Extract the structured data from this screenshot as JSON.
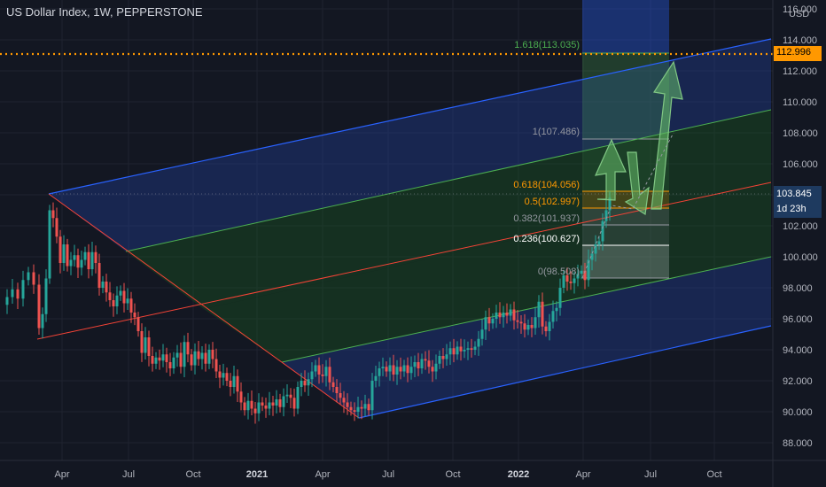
{
  "header": {
    "title": "US Dollar Index, 1W, PEPPERSTONE",
    "currency": "USD"
  },
  "price_axis": {
    "ticks": [
      "116.000",
      "114.000",
      "112.000",
      "110.000",
      "108.000",
      "106.000",
      "104.000",
      "102.000",
      "100.000",
      "98.000",
      "96.000",
      "94.000",
      "92.000",
      "90.000",
      "88.000"
    ],
    "alert_price": "112.996",
    "last_price": "103.845",
    "countdown": "1d 23h"
  },
  "time_axis": {
    "ticks": [
      "Apr",
      "Jul",
      "Oct",
      "2021",
      "Apr",
      "Jul",
      "Oct",
      "2022",
      "Apr",
      "Jul",
      "Oct"
    ],
    "bold": [
      false,
      false,
      false,
      true,
      false,
      false,
      false,
      true,
      false,
      false,
      false
    ]
  },
  "fib_levels": [
    {
      "label": "1.618(113.035)",
      "color": "#4caf50"
    },
    {
      "label": "1(107.486)",
      "color": "#9598a1"
    },
    {
      "label": "0.618(104.056)",
      "color": "#ff9800"
    },
    {
      "label": "0.5(102.997)",
      "color": "#ff9800"
    },
    {
      "label": "0.382(101.937)",
      "color": "#9598a1"
    },
    {
      "label": "0.236(100.627)",
      "color": "#ffffff"
    },
    {
      "label": "0(98.508)",
      "color": "#9598a1"
    }
  ],
  "colors": {
    "background": "#131722",
    "up": "#26a69a",
    "down": "#ef5350",
    "alert": "#ff9800",
    "channel_blue": "#2962ff",
    "median_red": "#f44336",
    "channel_green": "#4caf50",
    "arrow": "#66bb6a"
  },
  "chart_data": {
    "type": "candlestick",
    "title": "US Dollar Index, 1W, PEPPERSTONE",
    "y_unit": "USD",
    "ylim": [
      87,
      116.5
    ],
    "grid": true,
    "points": [
      [
        0,
        96.9
      ],
      [
        6,
        97.4
      ],
      [
        12,
        97.9
      ],
      [
        18,
        97.3
      ],
      [
        24,
        98.5
      ],
      [
        30,
        99.0
      ],
      [
        36,
        98.2
      ],
      [
        42,
        95.4
      ],
      [
        46,
        96.3
      ],
      [
        50,
        98.6
      ],
      [
        54,
        103.0
      ],
      [
        58,
        102.5
      ],
      [
        62,
        101.3
      ],
      [
        66,
        99.6
      ],
      [
        70,
        100.8
      ],
      [
        74,
        99.4
      ],
      [
        78,
        99.8
      ],
      [
        82,
        100.1
      ],
      [
        86,
        99.3
      ],
      [
        90,
        99.8
      ],
      [
        94,
        100.3
      ],
      [
        98,
        99.2
      ],
      [
        102,
        100.3
      ],
      [
        106,
        99.6
      ],
      [
        110,
        98.0
      ],
      [
        114,
        98.4
      ],
      [
        118,
        97.7
      ],
      [
        122,
        97.2
      ],
      [
        126,
        96.8
      ],
      [
        130,
        97.5
      ],
      [
        134,
        97.8
      ],
      [
        138,
        97.0
      ],
      [
        142,
        97.3
      ],
      [
        146,
        96.4
      ],
      [
        150,
        96.1
      ],
      [
        154,
        95.2
      ],
      [
        158,
        93.8
      ],
      [
        162,
        94.8
      ],
      [
        166,
        93.6
      ],
      [
        170,
        93.1
      ],
      [
        174,
        93.5
      ],
      [
        178,
        93.3
      ],
      [
        182,
        93.7
      ],
      [
        186,
        93.2
      ],
      [
        190,
        92.8
      ],
      [
        194,
        93.5
      ],
      [
        198,
        93.8
      ],
      [
        202,
        92.9
      ],
      [
        206,
        94.5
      ],
      [
        210,
        93.7
      ],
      [
        214,
        93.0
      ],
      [
        218,
        93.9
      ],
      [
        222,
        93.4
      ],
      [
        226,
        93.8
      ],
      [
        230,
        93.1
      ],
      [
        234,
        94.0
      ],
      [
        238,
        93.4
      ],
      [
        242,
        92.6
      ],
      [
        246,
        92.2
      ],
      [
        250,
        92.5
      ],
      [
        254,
        92.0
      ],
      [
        258,
        91.6
      ],
      [
        262,
        92.3
      ],
      [
        266,
        91.3
      ],
      [
        270,
        90.6
      ],
      [
        274,
        90.1
      ],
      [
        278,
        90.7
      ],
      [
        282,
        90.2
      ],
      [
        286,
        89.9
      ],
      [
        290,
        90.6
      ],
      [
        294,
        90.4
      ],
      [
        298,
        90.2
      ],
      [
        302,
        90.6
      ],
      [
        306,
        90.4
      ],
      [
        310,
        90.8
      ],
      [
        314,
        90.3
      ],
      [
        318,
        91.0
      ],
      [
        322,
        91.1
      ],
      [
        326,
        90.9
      ],
      [
        330,
        90.2
      ],
      [
        334,
        91.6
      ],
      [
        338,
        92.0
      ],
      [
        342,
        91.7
      ],
      [
        346,
        92.1
      ],
      [
        350,
        92.6
      ],
      [
        354,
        93.0
      ],
      [
        358,
        92.4
      ],
      [
        362,
        92.3
      ],
      [
        366,
        92.9
      ],
      [
        370,
        91.9
      ],
      [
        374,
        91.6
      ],
      [
        378,
        91.2
      ],
      [
        382,
        90.9
      ],
      [
        386,
        90.6
      ],
      [
        390,
        90.3
      ],
      [
        394,
        90.1
      ],
      [
        398,
        90.0
      ],
      [
        402,
        90.3
      ],
      [
        406,
        90.2
      ],
      [
        410,
        90.5
      ],
      [
        414,
        90.1
      ],
      [
        418,
        92.0
      ],
      [
        422,
        92.3
      ],
      [
        426,
        92.8
      ],
      [
        430,
        92.9
      ],
      [
        434,
        92.6
      ],
      [
        438,
        93.0
      ],
      [
        442,
        92.4
      ],
      [
        446,
        92.9
      ],
      [
        450,
        92.6
      ],
      [
        454,
        93.0
      ],
      [
        458,
        92.5
      ],
      [
        462,
        92.9
      ],
      [
        466,
        93.2
      ],
      [
        470,
        92.8
      ],
      [
        474,
        93.4
      ],
      [
        478,
        93.3
      ],
      [
        482,
        92.9
      ],
      [
        486,
        92.6
      ],
      [
        490,
        93.1
      ],
      [
        494,
        93.6
      ],
      [
        498,
        93.4
      ],
      [
        502,
        93.7
      ],
      [
        506,
        94.1
      ],
      [
        510,
        93.7
      ],
      [
        514,
        94.2
      ],
      [
        518,
        93.9
      ],
      [
        522,
        94.0
      ],
      [
        526,
        94.1
      ],
      [
        530,
        94.0
      ],
      [
        534,
        94.2
      ],
      [
        538,
        94.7
      ],
      [
        542,
        95.3
      ],
      [
        546,
        96.1
      ],
      [
        550,
        95.7
      ],
      [
        554,
        96.0
      ],
      [
        558,
        96.4
      ],
      [
        562,
        96.1
      ],
      [
        566,
        96.4
      ],
      [
        570,
        96.2
      ],
      [
        574,
        96.6
      ],
      [
        578,
        95.9
      ],
      [
        582,
        95.8
      ],
      [
        586,
        95.7
      ],
      [
        590,
        95.3
      ],
      [
        594,
        95.6
      ],
      [
        598,
        95.4
      ],
      [
        602,
        96.1
      ],
      [
        606,
        97.1
      ],
      [
        610,
        95.5
      ],
      [
        614,
        95.2
      ],
      [
        618,
        95.8
      ],
      [
        622,
        96.5
      ],
      [
        626,
        96.7
      ],
      [
        630,
        98.0
      ],
      [
        634,
        98.8
      ],
      [
        638,
        98.4
      ],
      [
        642,
        98.3
      ],
      [
        646,
        98.6
      ],
      [
        650,
        98.9
      ],
      [
        654,
        99.1
      ],
      [
        658,
        98.5
      ],
      [
        662,
        99.8
      ],
      [
        666,
        100.2
      ],
      [
        670,
        100.8
      ],
      [
        674,
        101.0
      ],
      [
        678,
        102.3
      ],
      [
        682,
        103.0
      ],
      [
        686,
        103.8
      ]
    ]
  }
}
